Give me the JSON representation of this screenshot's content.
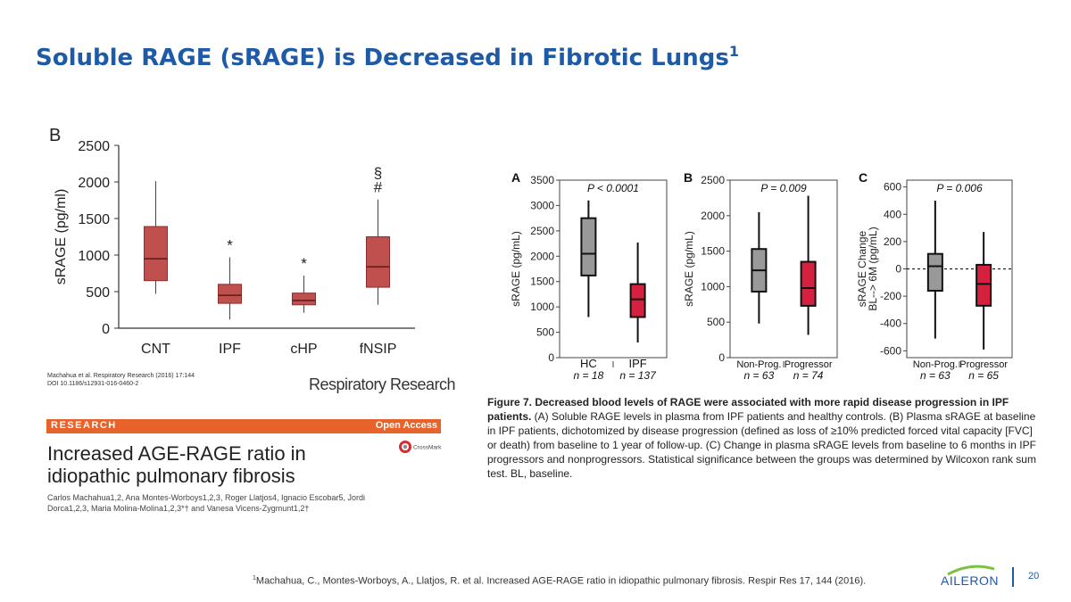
{
  "slide": {
    "title": "Soluble RAGE (sRAGE) is Decreased in Fibrotic Lungs",
    "title_sup": "1",
    "page_number": "20",
    "logo_text": "AILERON",
    "footnote_sup": "1",
    "footnote": "Machahua, C., Montes-Worboys, A., Llatjos, R. et al. Increased AGE-RAGE ratio in idiopathic pulmonary fibrosis. Respir Res 17, 144 (2016)."
  },
  "paper": {
    "citation_line1": "Machahua et al. Respiratory Research (2016) 17:144",
    "citation_line2": "DOI 10.1186/s12931-016-0460-2",
    "journal": "Respiratory Research",
    "section": "RESEARCH",
    "access": "Open Access",
    "crossmark": "CrossMark",
    "title": "Increased AGE-RAGE ratio in idiopathic pulmonary fibrosis",
    "authors": "Carlos Machahua1,2, Ana Montes-Worboys1,2,3, Roger Llatjos4, Ignacio Escobar5, Jordi Dorca1,2,3, Maria Molina-Molina1,2,3*† and Vanesa Vicens-Zygmunt1,2†"
  },
  "caption": {
    "lead": "Figure 7. Decreased blood levels of RAGE were associated with more rapid disease progression in IPF patients.",
    "body": " (A) Soluble RAGE levels in plasma from IPF patients and healthy controls. (B) Plasma sRAGE at baseline in IPF patients, dichotomized by disease progression (defined as loss of ≥10% predicted forced vital capacity [FVC] or death) from baseline to 1 year of follow-up. (C) Change in plasma sRAGE levels from baseline to 6 months in IPF progressors and nonprogressors. Statistical significance between the groups was determined by Wilcoxon rank sum test. BL, baseline."
  },
  "chart_data": [
    {
      "type": "box",
      "panel": "B",
      "ylabel": "sRAGE (pg/ml)",
      "ylim": [
        0,
        2500
      ],
      "yticks": [
        0,
        500,
        1000,
        1500,
        2000,
        2500
      ],
      "categories": [
        "CNT",
        "IPF",
        "cHP",
        "fNSIP"
      ],
      "boxes": [
        {
          "min": 470,
          "q1": 650,
          "median": 950,
          "q3": 1390,
          "max": 2010,
          "marker": ""
        },
        {
          "min": 120,
          "q1": 340,
          "median": 450,
          "q3": 600,
          "max": 970,
          "marker": "*"
        },
        {
          "min": 210,
          "q1": 320,
          "median": 380,
          "q3": 480,
          "max": 720,
          "marker": "*"
        },
        {
          "min": 320,
          "q1": 560,
          "median": 840,
          "q3": 1250,
          "max": 1760,
          "marker": "§\n#"
        }
      ],
      "color": "#c0504d"
    },
    {
      "type": "box",
      "panel": "A",
      "ylabel": "sRAGE (pg/mL)",
      "ylim": [
        0,
        3500
      ],
      "yticks": [
        0,
        500,
        1000,
        1500,
        2000,
        2500,
        3000,
        3500
      ],
      "pvalue": "P < 0.0001",
      "categories": [
        "HC",
        "IPF"
      ],
      "n": [
        "n = 18",
        "n = 137"
      ],
      "colors": [
        "#999999",
        "#d6203f"
      ],
      "boxes": [
        {
          "min": 800,
          "q1": 1620,
          "median": 2050,
          "q3": 2750,
          "max": 3100
        },
        {
          "min": 300,
          "q1": 800,
          "median": 1150,
          "q3": 1450,
          "max": 2270
        }
      ]
    },
    {
      "type": "box",
      "panel": "B",
      "ylabel": "sRAGE (pg/mL)",
      "ylim": [
        0,
        2500
      ],
      "yticks": [
        0,
        500,
        1000,
        1500,
        2000,
        2500
      ],
      "pvalue": "P = 0.009",
      "categories": [
        "Non-Prog.",
        "Progressor"
      ],
      "n": [
        "n = 63",
        "n = 74"
      ],
      "colors": [
        "#999999",
        "#d6203f"
      ],
      "boxes": [
        {
          "min": 480,
          "q1": 930,
          "median": 1230,
          "q3": 1530,
          "max": 2050
        },
        {
          "min": 320,
          "q1": 730,
          "median": 980,
          "q3": 1350,
          "max": 2280
        }
      ]
    },
    {
      "type": "box",
      "panel": "C",
      "ylabel": "sRAGE Change BL--> 6M (pg/mL)",
      "ylim": [
        -650,
        650
      ],
      "yticks": [
        -600,
        -400,
        -200,
        0,
        200,
        400,
        600
      ],
      "pvalue": "P = 0.006",
      "reference_line": 0,
      "categories": [
        "Non-Prog.",
        "Progressor"
      ],
      "n": [
        "n = 63",
        "n = 65"
      ],
      "colors": [
        "#999999",
        "#d6203f"
      ],
      "boxes": [
        {
          "min": -510,
          "q1": -160,
          "median": 20,
          "q3": 110,
          "max": 500
        },
        {
          "min": -590,
          "q1": -270,
          "median": -110,
          "q3": 30,
          "max": 270
        }
      ]
    }
  ]
}
